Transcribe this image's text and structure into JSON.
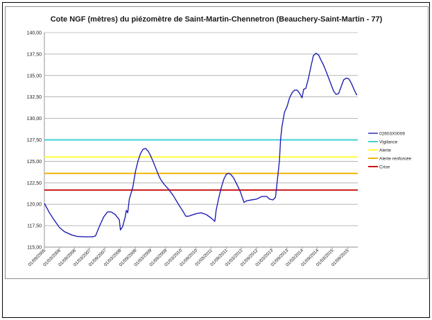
{
  "chart_data": {
    "type": "line",
    "title": "Cote NGF (mètres) du piézomètre de Saint-Martin-Chennetron (Beauchery-Saint-Martin - 77)",
    "xlabel": "",
    "ylabel": "",
    "ylim": [
      115,
      140
    ],
    "y_ticks": [
      "115,00",
      "117,50",
      "120,00",
      "122,50",
      "125,00",
      "127,50",
      "130,00",
      "132,50",
      "135,00",
      "137,50",
      "140,00"
    ],
    "x_ticks": [
      "01/09/2005",
      "01/03/2006",
      "01/09/2006",
      "01/03/2007",
      "01/09/2007",
      "01/03/2008",
      "01/09/2008",
      "01/03/2009",
      "01/09/2009",
      "01/03/2010",
      "01/09/2010",
      "01/03/2011",
      "01/09/2011",
      "01/03/2012",
      "01/09/2012",
      "01/03/2013",
      "01/09/2013",
      "01/03/2014",
      "01/09/2014",
      "01/03/2015",
      "01/09/2015"
    ],
    "x_end": "01/01/2016",
    "grid": "horizontal",
    "legend_position": "right",
    "series": [
      {
        "name": "02603X0009",
        "color": "#1f1fb4",
        "points": [
          [
            "2005-09-01",
            120.1
          ],
          [
            "2005-11-01",
            119.0
          ],
          [
            "2006-01-01",
            118.1
          ],
          [
            "2006-03-01",
            117.3
          ],
          [
            "2006-05-01",
            116.8
          ],
          [
            "2006-08-01",
            116.4
          ],
          [
            "2006-10-01",
            116.25
          ],
          [
            "2007-01-01",
            116.2
          ],
          [
            "2007-04-01",
            116.2
          ],
          [
            "2007-05-10",
            116.3
          ],
          [
            "2007-06-20",
            117.3
          ],
          [
            "2007-08-15",
            118.5
          ],
          [
            "2007-10-01",
            119.1
          ],
          [
            "2007-11-15",
            119.1
          ],
          [
            "2008-01-01",
            118.8
          ],
          [
            "2008-02-20",
            118.2
          ],
          [
            "2008-03-05",
            117.0
          ],
          [
            "2008-04-01",
            117.4
          ],
          [
            "2008-05-01",
            118.5
          ],
          [
            "2008-05-15",
            119.3
          ],
          [
            "2008-06-01",
            119.0
          ],
          [
            "2008-06-20",
            120.6
          ],
          [
            "2008-08-01",
            122.0
          ],
          [
            "2008-09-01",
            123.8
          ],
          [
            "2008-10-01",
            125.0
          ],
          [
            "2008-11-01",
            125.9
          ],
          [
            "2008-12-01",
            126.4
          ],
          [
            "2009-01-01",
            126.5
          ],
          [
            "2009-02-01",
            126.2
          ],
          [
            "2009-03-01",
            125.7
          ],
          [
            "2009-04-01",
            125.0
          ],
          [
            "2009-05-01",
            124.3
          ],
          [
            "2009-06-01",
            123.5
          ],
          [
            "2009-07-01",
            122.9
          ],
          [
            "2009-08-15",
            122.3
          ],
          [
            "2009-10-01",
            121.8
          ],
          [
            "2009-12-01",
            121.0
          ],
          [
            "2010-02-01",
            120.0
          ],
          [
            "2010-04-01",
            119.1
          ],
          [
            "2010-05-01",
            118.6
          ],
          [
            "2010-06-01",
            118.6
          ],
          [
            "2010-07-01",
            118.7
          ],
          [
            "2010-09-01",
            118.9
          ],
          [
            "2010-11-01",
            119.0
          ],
          [
            "2011-01-01",
            118.8
          ],
          [
            "2011-03-01",
            118.4
          ],
          [
            "2011-04-15",
            118.0
          ],
          [
            "2011-05-01",
            119.3
          ],
          [
            "2011-06-01",
            120.7
          ],
          [
            "2011-07-01",
            121.9
          ],
          [
            "2011-08-01",
            122.9
          ],
          [
            "2011-09-01",
            123.5
          ],
          [
            "2011-10-01",
            123.6
          ],
          [
            "2011-11-01",
            123.4
          ],
          [
            "2011-12-01",
            123.0
          ],
          [
            "2012-01-01",
            122.4
          ],
          [
            "2012-02-15",
            121.5
          ],
          [
            "2012-04-01",
            120.2
          ],
          [
            "2012-05-01",
            120.4
          ],
          [
            "2012-07-01",
            120.5
          ],
          [
            "2012-09-01",
            120.6
          ],
          [
            "2012-11-01",
            120.9
          ],
          [
            "2013-01-01",
            120.9
          ],
          [
            "2013-02-01",
            120.6
          ],
          [
            "2013-03-15",
            120.5
          ],
          [
            "2013-04-15",
            120.8
          ],
          [
            "2013-05-15",
            123.5
          ],
          [
            "2013-06-01",
            125.0
          ],
          [
            "2013-06-15",
            127.5
          ],
          [
            "2013-07-01",
            129.0
          ],
          [
            "2013-08-01",
            130.7
          ],
          [
            "2013-09-01",
            131.4
          ],
          [
            "2013-10-01",
            132.4
          ],
          [
            "2013-11-01",
            133.0
          ],
          [
            "2013-12-01",
            133.3
          ],
          [
            "2014-01-01",
            133.3
          ],
          [
            "2014-02-01",
            132.9
          ],
          [
            "2014-03-01",
            132.4
          ],
          [
            "2014-03-20",
            133.4
          ],
          [
            "2014-04-15",
            133.5
          ],
          [
            "2014-05-15",
            134.6
          ],
          [
            "2014-06-15",
            136.0
          ],
          [
            "2014-07-15",
            137.3
          ],
          [
            "2014-08-15",
            137.6
          ],
          [
            "2014-09-15",
            137.4
          ],
          [
            "2014-10-15",
            136.8
          ],
          [
            "2014-11-15",
            136.2
          ],
          [
            "2014-12-15",
            135.5
          ],
          [
            "2015-01-15",
            134.7
          ],
          [
            "2015-02-15",
            133.9
          ],
          [
            "2015-03-15",
            133.2
          ],
          [
            "2015-04-15",
            132.8
          ],
          [
            "2015-05-15",
            132.9
          ],
          [
            "2015-06-15",
            133.7
          ],
          [
            "2015-07-15",
            134.5
          ],
          [
            "2015-08-15",
            134.7
          ],
          [
            "2015-09-15",
            134.6
          ],
          [
            "2015-10-15",
            134.1
          ],
          [
            "2015-11-15",
            133.4
          ],
          [
            "2015-12-20",
            132.7
          ]
        ]
      },
      {
        "name": "Vigilance",
        "color": "#3fd1d1",
        "value": 127.5
      },
      {
        "name": "Alerte",
        "color": "#ffff3a",
        "value": 125.5
      },
      {
        "name": "Alerte renforcée",
        "color": "#f2b400",
        "value": 123.6
      },
      {
        "name": "Crise",
        "color": "#cc1111",
        "value": 121.65
      }
    ]
  }
}
